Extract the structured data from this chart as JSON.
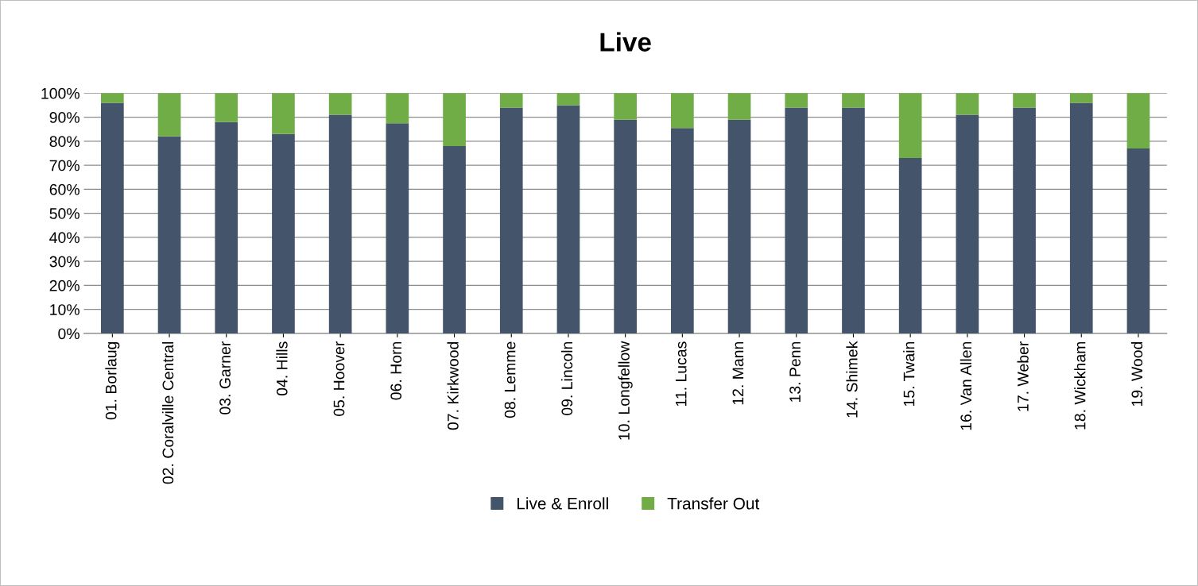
{
  "chart_data": {
    "type": "bar",
    "title": "Live",
    "stacked": true,
    "categories": [
      "01. Borlaug",
      "02. Coralville Central",
      "03. Garner",
      "04. Hills",
      "05. Hoover",
      "06. Horn",
      "07. Kirkwood",
      "08. Lemme",
      "09. Lincoln",
      "10. Longfellow",
      "11. Lucas",
      "12. Mann",
      "13. Penn",
      "14. Shimek",
      "15. Twain",
      "16. Van Allen",
      "17. Weber",
      "18. Wickham",
      "19. Wood"
    ],
    "series": [
      {
        "name": "Live & Enroll",
        "color": "#44546a",
        "values": [
          96,
          82,
          88,
          83,
          91,
          87.5,
          78,
          94,
          95,
          89,
          85.5,
          89,
          94,
          94,
          73,
          91,
          94,
          96,
          77
        ]
      },
      {
        "name": "Transfer Out",
        "color": "#70ad47",
        "values": [
          4,
          18,
          12,
          17,
          9,
          12.5,
          22,
          6,
          5,
          11,
          14.5,
          11,
          6,
          6,
          27,
          9,
          6,
          4,
          23
        ]
      }
    ],
    "ylim": [
      0,
      100
    ],
    "yticks": [
      {
        "value": 0,
        "label": "0%"
      },
      {
        "value": 10,
        "label": "10%"
      },
      {
        "value": 20,
        "label": "20%"
      },
      {
        "value": 30,
        "label": "30%"
      },
      {
        "value": 40,
        "label": "40%"
      },
      {
        "value": 50,
        "label": "50%"
      },
      {
        "value": 60,
        "label": "60%"
      },
      {
        "value": 70,
        "label": "70%"
      },
      {
        "value": 80,
        "label": "80%"
      },
      {
        "value": 90,
        "label": "90%"
      },
      {
        "value": 100,
        "label": "100%"
      }
    ],
    "grid": "y",
    "legend": "bottom"
  }
}
